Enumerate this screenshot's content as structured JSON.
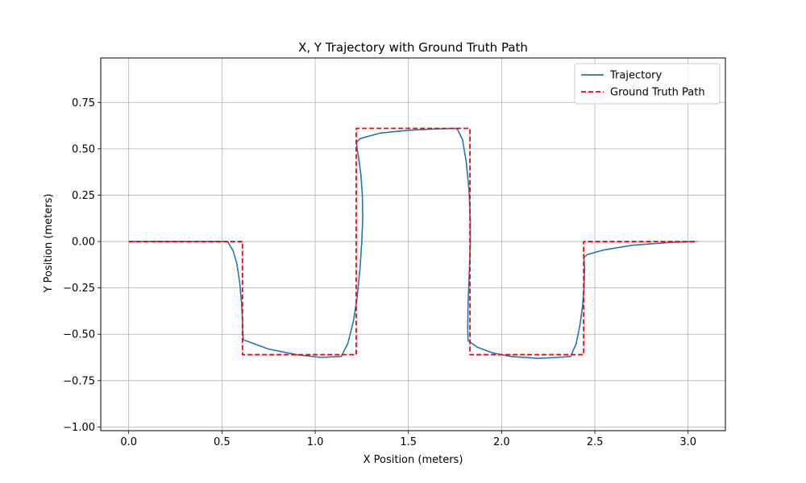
{
  "chart_data": {
    "type": "line",
    "title": "X, Y Trajectory with Ground Truth Path",
    "xlabel": "X Position (meters)",
    "ylabel": "Y Position (meters)",
    "xlim": [
      -0.15,
      3.2
    ],
    "ylim": [
      -1.02,
      0.99
    ],
    "xticks": [
      0.0,
      0.5,
      1.0,
      1.5,
      2.0,
      2.5,
      3.0
    ],
    "xtick_labels": [
      "0.0",
      "0.5",
      "1.0",
      "1.5",
      "2.0",
      "2.5",
      "3.0"
    ],
    "yticks": [
      -1.0,
      -0.75,
      -0.5,
      -0.25,
      0.0,
      0.25,
      0.5,
      0.75
    ],
    "ytick_labels": [
      "−1.00",
      "−0.75",
      "−0.50",
      "−0.25",
      "0.00",
      "0.25",
      "0.50",
      "0.75"
    ],
    "grid": true,
    "legend_position": "top-right",
    "series": [
      {
        "name": "Trajectory",
        "color": "#1f77b4",
        "style": "solid",
        "x": [
          0.0,
          0.3,
          0.53,
          0.56,
          0.58,
          0.595,
          0.605,
          0.61,
          0.612,
          0.615,
          0.75,
          0.9,
          1.03,
          1.14,
          1.175,
          1.205,
          1.225,
          1.24,
          1.25,
          1.255,
          1.253,
          1.245,
          1.235,
          1.225,
          1.222,
          1.24,
          1.35,
          1.5,
          1.64,
          1.76,
          1.79,
          1.81,
          1.825,
          1.832,
          1.832,
          1.826,
          1.82,
          1.818,
          1.82,
          1.87,
          1.95,
          2.05,
          2.2,
          2.3,
          2.37,
          2.4,
          2.42,
          2.435,
          2.442,
          2.445,
          2.443,
          2.441,
          2.46,
          2.55,
          2.7,
          2.9,
          3.04
        ],
        "y": [
          0.0,
          0.0,
          0.0,
          -0.05,
          -0.12,
          -0.22,
          -0.33,
          -0.43,
          -0.49,
          -0.53,
          -0.58,
          -0.61,
          -0.625,
          -0.62,
          -0.55,
          -0.43,
          -0.3,
          -0.15,
          0.0,
          0.12,
          0.25,
          0.36,
          0.44,
          0.5,
          0.535,
          0.555,
          0.585,
          0.6,
          0.607,
          0.61,
          0.55,
          0.43,
          0.28,
          0.12,
          -0.02,
          -0.18,
          -0.34,
          -0.47,
          -0.535,
          -0.57,
          -0.6,
          -0.62,
          -0.63,
          -0.625,
          -0.62,
          -0.55,
          -0.45,
          -0.34,
          -0.24,
          -0.15,
          -0.11,
          -0.085,
          -0.07,
          -0.045,
          -0.02,
          -0.005,
          0.0
        ]
      },
      {
        "name": "Ground Truth Path",
        "color": "#ff0000",
        "style": "dashed",
        "x": [
          0.0,
          0.61,
          0.61,
          1.22,
          1.22,
          1.83,
          1.83,
          2.44,
          2.44,
          3.05
        ],
        "y": [
          0.0,
          0.0,
          -0.61,
          -0.61,
          0.61,
          0.61,
          -0.61,
          -0.61,
          0.0,
          0.0
        ]
      }
    ]
  }
}
